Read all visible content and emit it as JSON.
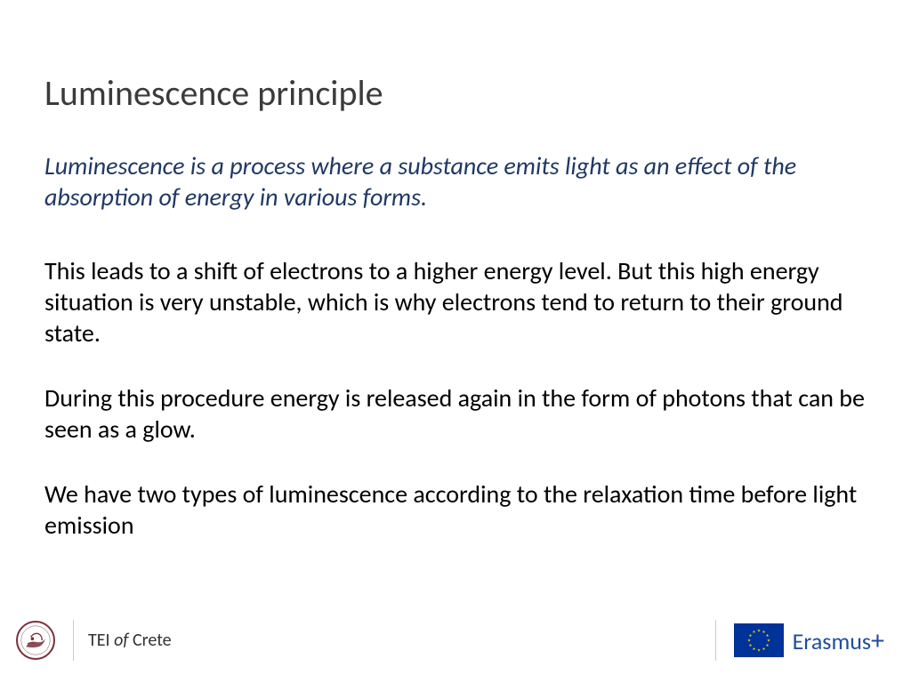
{
  "title": "Luminescence principle",
  "intro": "Luminescence is a process where a substance emits light as an effect of the absorption of energy in various forms.",
  "para1": "This leads to a shift of electrons to a higher energy level. But this high energy situation is very unstable, which is why electrons tend to return to their ground state.",
  "para2": "During this procedure energy is released again in the form of photons that can be seen as a glow.",
  "para3": "We have two types of luminescence according to the relaxation time before light emission",
  "footer": {
    "tei_prefix": "TEI ",
    "tei_of": "of",
    "tei_suffix": " Crete",
    "erasmus": "Erasmus",
    "erasmus_plus": "+"
  },
  "colors": {
    "title_color": "#3b3b3b",
    "intro_color": "#1f3864",
    "body_color": "#000000",
    "eu_flag_bg": "#003399",
    "eu_star": "#ffcc00",
    "erasmus_color": "#1f4e9c",
    "tei_seal": "#7a2f3a",
    "divider": "#cccccc"
  },
  "typography": {
    "title_size": 40,
    "intro_size": 28,
    "body_size": 28,
    "footer_left_size": 20,
    "erasmus_size": 26
  }
}
